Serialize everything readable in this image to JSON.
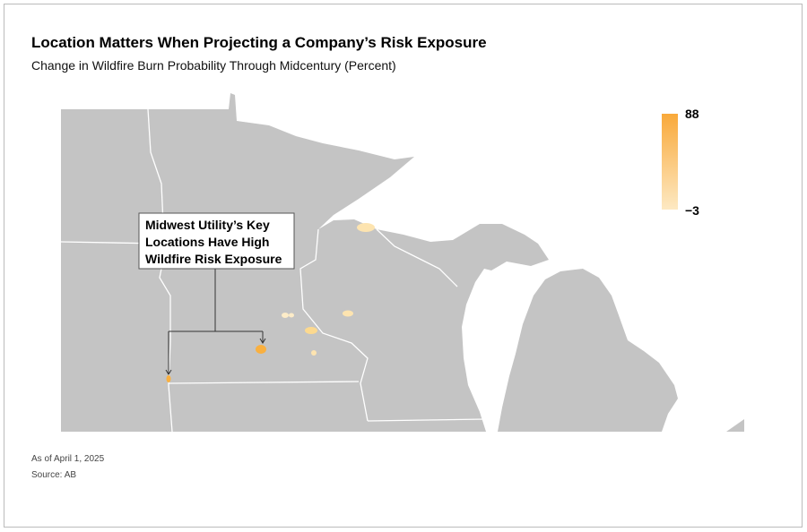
{
  "header": {
    "title": "Location Matters When Projecting a Company’s Risk Exposure",
    "subtitle": "Change in Wildfire Burn Probability Through Midcentury (Percent)"
  },
  "legend": {
    "max": "88",
    "min": "−3"
  },
  "annotation": [
    "Midwest Utility’s Key",
    "Locations Have High",
    "Wildfire Risk Exposure"
  ],
  "footer": {
    "note": "As of April 1, 2025",
    "source": "Source: AB"
  }
}
